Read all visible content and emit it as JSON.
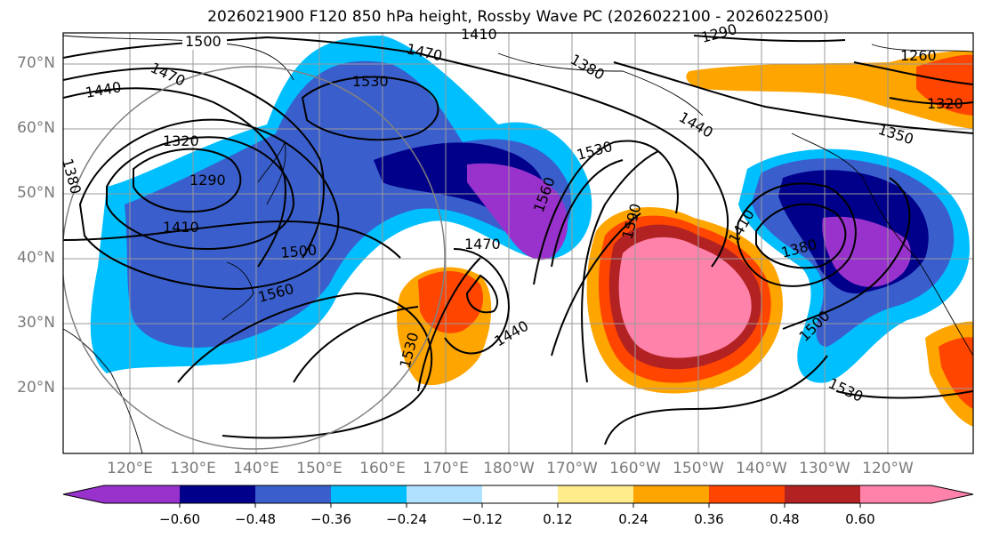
{
  "title": "2026021900 F120 850 hPa height, Rossby Wave PC (2026022100 - 2026022500)",
  "lat_labels": [
    "70°N",
    "60°N",
    "50°N",
    "40°N",
    "30°N",
    "20°N"
  ],
  "lon_labels": [
    "120°E",
    "130°E",
    "140°E",
    "150°E",
    "160°E",
    "170°E",
    "180°W",
    "170°W",
    "160°W",
    "150°W",
    "140°W",
    "130°W",
    "120°W"
  ],
  "contour_labels": [
    "1500",
    "1470",
    "1410",
    "1290",
    "1380",
    "1260",
    "1470",
    "1440",
    "1530",
    "1320",
    "1440",
    "1350",
    "1380",
    "1320",
    "1290",
    "1530",
    "1560",
    "1410",
    "1500",
    "1470",
    "1590",
    "1410",
    "1380",
    "1560",
    "1440",
    "1530",
    "1500",
    "1530"
  ],
  "colorbar": {
    "ticks": [
      "−0.60",
      "−0.48",
      "−0.36",
      "−0.24",
      "−0.12",
      "0.12",
      "0.24",
      "0.36",
      "0.48",
      "0.60"
    ],
    "colors": [
      "#9932cc",
      "#00008b",
      "#3a5fcd",
      "#00bfff",
      "#b0e2ff",
      "#ffffff",
      "#ffec8b",
      "#ffa500",
      "#ff4500",
      "#b22222",
      "#ff82ab"
    ]
  },
  "colors": {
    "neg_060": "#9932cc",
    "neg_048": "#00008b",
    "neg_036": "#3a5fcd",
    "neg_024": "#00bfff",
    "neg_012": "#b0e2ff",
    "pos_024": "#ffa500",
    "pos_036": "#ff4500",
    "pos_048": "#b22222",
    "pos_060": "#ff82ab",
    "grid": "#999999",
    "axis_label": "#7a7a7a"
  }
}
